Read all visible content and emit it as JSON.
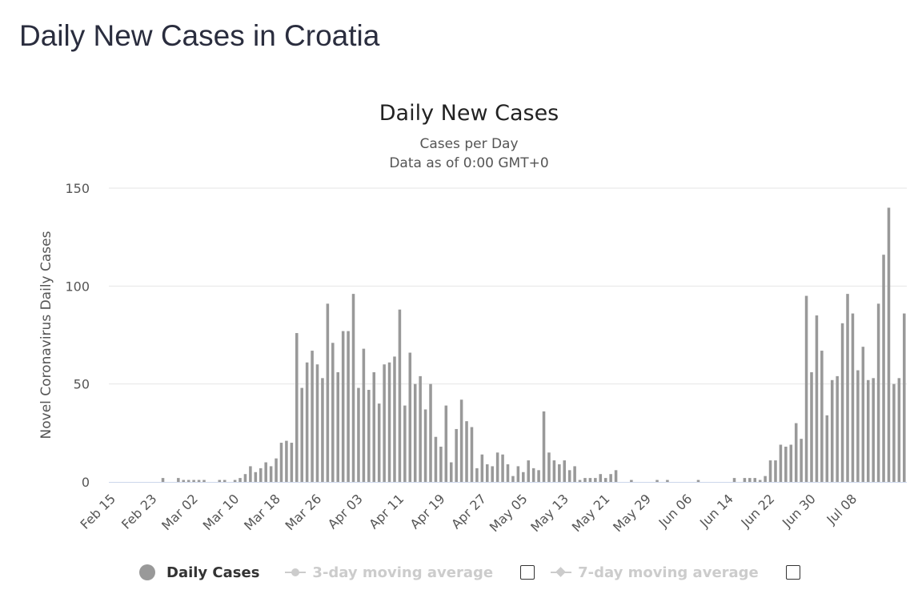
{
  "page": {
    "title": "Daily New Cases in Croatia"
  },
  "colors": {
    "bar": "#999999",
    "grid": "#e6e6e6",
    "axis": "#ccd6eb",
    "legend_off": "#cccccc"
  },
  "legend": {
    "items": [
      {
        "label": "Daily Cases",
        "icon": "circle-icon",
        "active": true
      },
      {
        "label": "3-day moving average",
        "icon": "line-circle-icon",
        "active": false
      },
      {
        "label": "7-day moving average",
        "icon": "line-diamond-icon",
        "active": false
      }
    ]
  },
  "chart_data": {
    "type": "bar",
    "title": "Daily New Cases",
    "subtitle_1": "Cases per Day",
    "subtitle_2": "Data as of 0:00 GMT+0",
    "ylabel": "Novel Coronavirus Daily Cases",
    "xlabel": "",
    "ylim": [
      0,
      150
    ],
    "yticks": [
      0,
      50,
      100,
      150
    ],
    "grid": true,
    "start_date": "Feb 15",
    "xtick_labels": [
      "Feb 15",
      "Feb 23",
      "Mar 02",
      "Mar 10",
      "Mar 18",
      "Mar 26",
      "Apr 03",
      "Apr 11",
      "Apr 19",
      "Apr 27",
      "May 05",
      "May 13",
      "May 21",
      "May 29",
      "Jun 06",
      "Jun 14",
      "Jun 22",
      "Jun 30",
      "Jul 08"
    ],
    "series": [
      {
        "name": "Daily Cases",
        "values": [
          0,
          0,
          0,
          0,
          0,
          0,
          0,
          0,
          0,
          0,
          2,
          0,
          0,
          2,
          1,
          1,
          1,
          1,
          1,
          0,
          0,
          1,
          1,
          0,
          1,
          2,
          4,
          8,
          5,
          7,
          10,
          8,
          12,
          20,
          21,
          20,
          76,
          48,
          61,
          67,
          60,
          53,
          91,
          71,
          56,
          77,
          77,
          96,
          48,
          68,
          47,
          56,
          40,
          60,
          61,
          64,
          88,
          39,
          66,
          50,
          54,
          37,
          50,
          23,
          18,
          39,
          10,
          27,
          42,
          31,
          28,
          7,
          14,
          9,
          8,
          15,
          14,
          9,
          3,
          8,
          5,
          11,
          7,
          6,
          36,
          15,
          11,
          9,
          11,
          6,
          8,
          1,
          2,
          2,
          2,
          4,
          2,
          4,
          6,
          0,
          0,
          1,
          0,
          0,
          0,
          0,
          1,
          0,
          1,
          0,
          0,
          0,
          0,
          0,
          1,
          0,
          0,
          0,
          0,
          0,
          0,
          2,
          0,
          2,
          2,
          2,
          1,
          3,
          11,
          11,
          19,
          18,
          19,
          30,
          22,
          95,
          56,
          85,
          67,
          34,
          52,
          54,
          81,
          96,
          86,
          57,
          69,
          52,
          53,
          91,
          116,
          140,
          50,
          53,
          86
        ]
      }
    ]
  }
}
